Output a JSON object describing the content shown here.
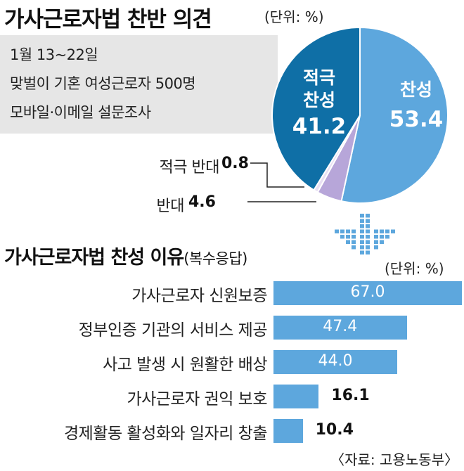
{
  "pie_section": {
    "title": "가사근로자법 찬반 의견",
    "unit": "(단위: %)",
    "info_lines": [
      "1월 13~22일",
      "맞벌이 기혼 여성근로자 500명",
      "모바일·이메일 설문조사"
    ]
  },
  "bar_section": {
    "title": "가사근로자법 찬성 이유",
    "subtitle": "(복수응답)",
    "unit": "(단위: %)"
  },
  "source": "〈자료: 고용노동부〉",
  "colors": {
    "strong_agree": "#0f6fa6",
    "agree": "#5da7dd",
    "oppose": "#b7a6d9",
    "strong_oppose": "#e8e0f3",
    "bar": "#5da7dd",
    "info_bg": "#e6e6e6"
  },
  "chart_data": [
    {
      "type": "pie",
      "title": "가사근로자법 찬반 의견",
      "unit": "%",
      "slices": [
        {
          "label": "적극 찬성",
          "value": 41.2,
          "display": "41.2"
        },
        {
          "label": "찬성",
          "value": 53.4,
          "display": "53.4"
        },
        {
          "label": "반대",
          "value": 4.6,
          "display": "4.6"
        },
        {
          "label": "적극 반대",
          "value": 0.8,
          "display": "0.8"
        }
      ]
    },
    {
      "type": "bar",
      "orientation": "horizontal",
      "title": "가사근로자법 찬성 이유",
      "subtitle": "(복수응답)",
      "unit": "%",
      "categories": [
        "가사근로자 신원보증",
        "정부인증 기관의 서비스 제공",
        "사고 발생 시 원활한 배상",
        "가사근로자 권익 보호",
        "경제활동 활성화와 일자리 창출"
      ],
      "values": [
        67.0,
        47.4,
        44.0,
        16.1,
        10.4
      ],
      "value_labels": [
        "67.0",
        "47.4",
        "44.0",
        "16.1",
        "10.4"
      ]
    }
  ]
}
